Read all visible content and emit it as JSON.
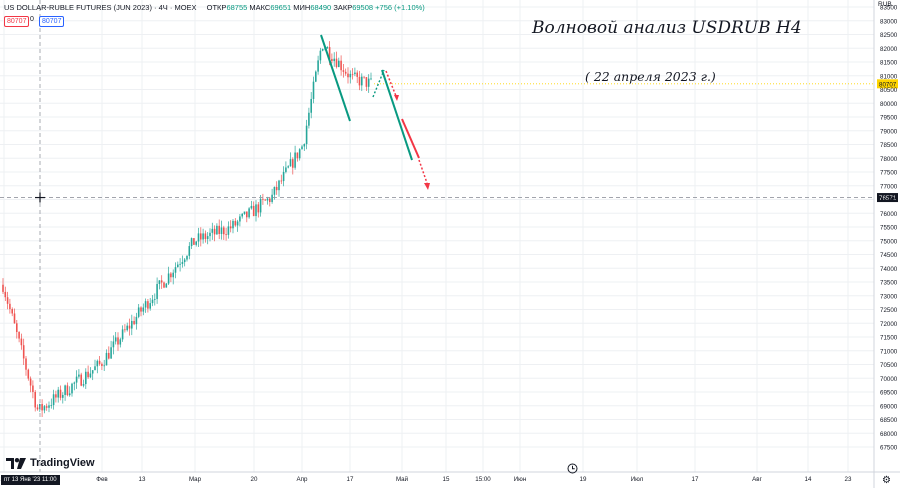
{
  "header": {
    "symbol": "US DOLLAR-RUBLE FUTURES (JUN 2023) · 4Ч · MOEX",
    "open_label": "ОТКР",
    "open_value": "68755",
    "high_label": "МАКС",
    "high_value": "69651",
    "low_label": "МИН",
    "low_value": "68490",
    "close_label": "ЗАКР",
    "close_value": "69508",
    "change": "+756 (+1.10%)",
    "bid": "80707",
    "spread": "0",
    "ask": "80707"
  },
  "annotation": {
    "title": "Волновой анализ USDRUB H4",
    "date": "( 22 апреля 2023 г.)"
  },
  "branding": {
    "logo_text": "TradingView"
  },
  "axis": {
    "currency": "RUB",
    "price_ticks": [
      "83500",
      "83000",
      "82500",
      "82000",
      "81500",
      "81000",
      "80500",
      "80000",
      "79500",
      "79000",
      "78500",
      "78000",
      "77500",
      "77000",
      "76500",
      "76000",
      "75500",
      "75000",
      "74500",
      "74000",
      "73500",
      "73000",
      "72500",
      "72000",
      "71500",
      "71000",
      "70500",
      "70000",
      "69500",
      "69000",
      "68500",
      "68000",
      "67500"
    ],
    "time_ticks": [
      "23",
      "Фев",
      "13",
      "Мар",
      "20",
      "Апр",
      "17",
      "Май",
      "15",
      "15:00",
      "Июн",
      "19",
      "Июл",
      "17",
      "Авг",
      "14",
      "23"
    ],
    "current_price_label": "80707",
    "crosshair_price_label": "76571",
    "crosshair_time_label": "пт 13 Янв '23  11:00"
  },
  "colors": {
    "up": "#26a69a",
    "down": "#ef5350",
    "crosshair": "#9598a1",
    "current_price": "#ffd500",
    "arrow_green": "#089981",
    "arrow_red": "#f23645"
  },
  "chart_data": {
    "type": "candlestick",
    "instrument": "US DOLLAR-RUBLE FUTURES (JUN 2023)",
    "timeframe": "4Ч",
    "ylim": [
      67250,
      83750
    ],
    "close_path_approx": [
      {
        "x": "Dec",
        "close": 73400
      },
      {
        "x": "13 Jan",
        "close": 68800
      },
      {
        "x": "Feb",
        "close": 70500
      },
      {
        "x": "13 Feb",
        "close": 72500
      },
      {
        "x": "Mar",
        "close": 75000
      },
      {
        "x": "13 Mar",
        "close": 75500
      },
      {
        "x": "20 Mar",
        "close": 76600
      },
      {
        "x": "Apr",
        "close": 78500
      },
      {
        "x": "7 Apr",
        "close": 82200
      },
      {
        "x": "17 Apr",
        "close": 80900
      },
      {
        "x": "21 Apr",
        "close": 80700
      }
    ],
    "current_price": 80707,
    "crosshair_price": 76571
  }
}
